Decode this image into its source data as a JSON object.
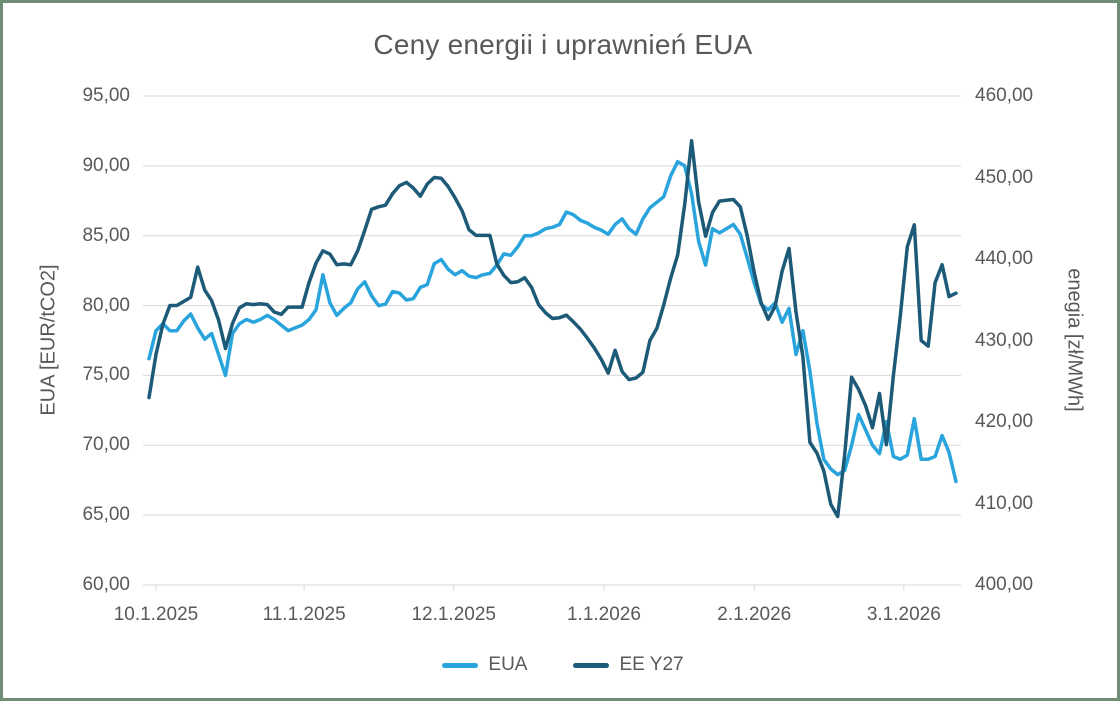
{
  "figure": {
    "border_color": "#6f8d74",
    "background": "#ffffff",
    "text_color": "#595959",
    "gridline_color": "#d9d9d9"
  },
  "chart_data": {
    "type": "line",
    "title": "Ceny energii i uprawnień EUA",
    "legend_position": "bottom",
    "grid": true,
    "left_axis": {
      "label": "EUA [EUR/tCO2]",
      "min": 60,
      "max": 95,
      "step": 5,
      "tick_labels": [
        "95,00",
        "90,00",
        "85,00",
        "80,00",
        "75,00",
        "70,00",
        "65,00",
        "60,00"
      ]
    },
    "right_axis": {
      "label": "enegia [zł/MWh]",
      "min": 400,
      "max": 460,
      "step": 10,
      "tick_labels": [
        "460,00",
        "450,00",
        "440,00",
        "430,00",
        "420,00",
        "410,00",
        "400,00"
      ]
    },
    "x_axis": {
      "tick_labels": [
        "10.1.2025",
        "11.1.2025",
        "12.1.2025",
        "1.1.2026",
        "2.1.2026",
        "3.1.2026"
      ],
      "tick_indices": [
        1,
        22.3,
        43.8,
        65.4,
        87,
        108.5
      ]
    },
    "series": [
      {
        "name": "EUA",
        "axis": "left",
        "color": "#29a4dc",
        "values": [
          76.2,
          78.2,
          78.7,
          78.2,
          78.2,
          78.9,
          79.4,
          78.4,
          77.6,
          78.0,
          76.5,
          75.0,
          78.0,
          78.7,
          79.0,
          78.8,
          79.0,
          79.3,
          79.0,
          78.6,
          78.2,
          78.4,
          78.6,
          79.0,
          79.7,
          82.2,
          80.2,
          79.3,
          79.8,
          80.2,
          81.2,
          81.7,
          80.7,
          80.0,
          80.1,
          81.0,
          80.9,
          80.4,
          80.5,
          81.3,
          81.5,
          83.0,
          83.3,
          82.6,
          82.2,
          82.5,
          82.1,
          82.0,
          82.2,
          82.3,
          82.9,
          83.7,
          83.6,
          84.2,
          85.0,
          85.0,
          85.2,
          85.5,
          85.6,
          85.8,
          86.7,
          86.5,
          86.1,
          85.9,
          85.6,
          85.4,
          85.1,
          85.8,
          86.2,
          85.5,
          85.1,
          86.2,
          87.0,
          87.4,
          87.8,
          89.3,
          90.3,
          90.0,
          88.0,
          84.6,
          82.9,
          85.5,
          85.2,
          85.5,
          85.8,
          85.1,
          83.4,
          81.6,
          80.1,
          79.7,
          80.2,
          78.8,
          79.8,
          76.5,
          78.2,
          75.3,
          71.6,
          69.0,
          68.3,
          67.9,
          68.2,
          70.0,
          72.2,
          71.1,
          70.0,
          69.4,
          71.7,
          69.2,
          69.0,
          69.3,
          71.9,
          69.0,
          69.0,
          69.2,
          70.7,
          69.5,
          67.4
        ]
      },
      {
        "name": "EE Y27",
        "axis": "right",
        "color": "#1c5a77",
        "values": [
          423.0,
          428.3,
          432.0,
          434.3,
          434.3,
          434.8,
          435.3,
          439.0,
          436.2,
          434.9,
          432.5,
          429.0,
          432.1,
          434.0,
          434.5,
          434.4,
          434.5,
          434.4,
          433.5,
          433.2,
          434.1,
          434.1,
          434.1,
          437.1,
          439.5,
          441.0,
          440.6,
          439.3,
          439.4,
          439.3,
          441.0,
          443.5,
          446.1,
          446.4,
          446.6,
          448.0,
          449.0,
          449.4,
          448.7,
          447.7,
          449.2,
          450.0,
          449.9,
          448.9,
          447.5,
          445.9,
          443.6,
          442.9,
          442.9,
          442.9,
          439.4,
          438.0,
          437.1,
          437.2,
          437.7,
          436.5,
          434.4,
          433.4,
          432.7,
          432.8,
          433.1,
          432.3,
          431.4,
          430.3,
          429.1,
          427.7,
          426.0,
          428.8,
          426.2,
          425.2,
          425.4,
          426.1,
          430.0,
          431.5,
          434.4,
          437.7,
          440.5,
          446.7,
          454.5,
          447.0,
          442.8,
          445.7,
          447.1,
          447.2,
          447.3,
          446.4,
          442.8,
          438.3,
          434.6,
          432.6,
          434.2,
          438.5,
          441.3,
          433.5,
          428.0,
          417.5,
          416.2,
          414.0,
          409.9,
          408.4,
          416.0,
          425.5,
          424.0,
          422.0,
          419.3,
          423.5,
          417.2,
          425.7,
          433.0,
          441.5,
          444.2,
          430.0,
          429.3,
          437.1,
          439.3,
          435.4,
          435.8
        ]
      }
    ]
  }
}
